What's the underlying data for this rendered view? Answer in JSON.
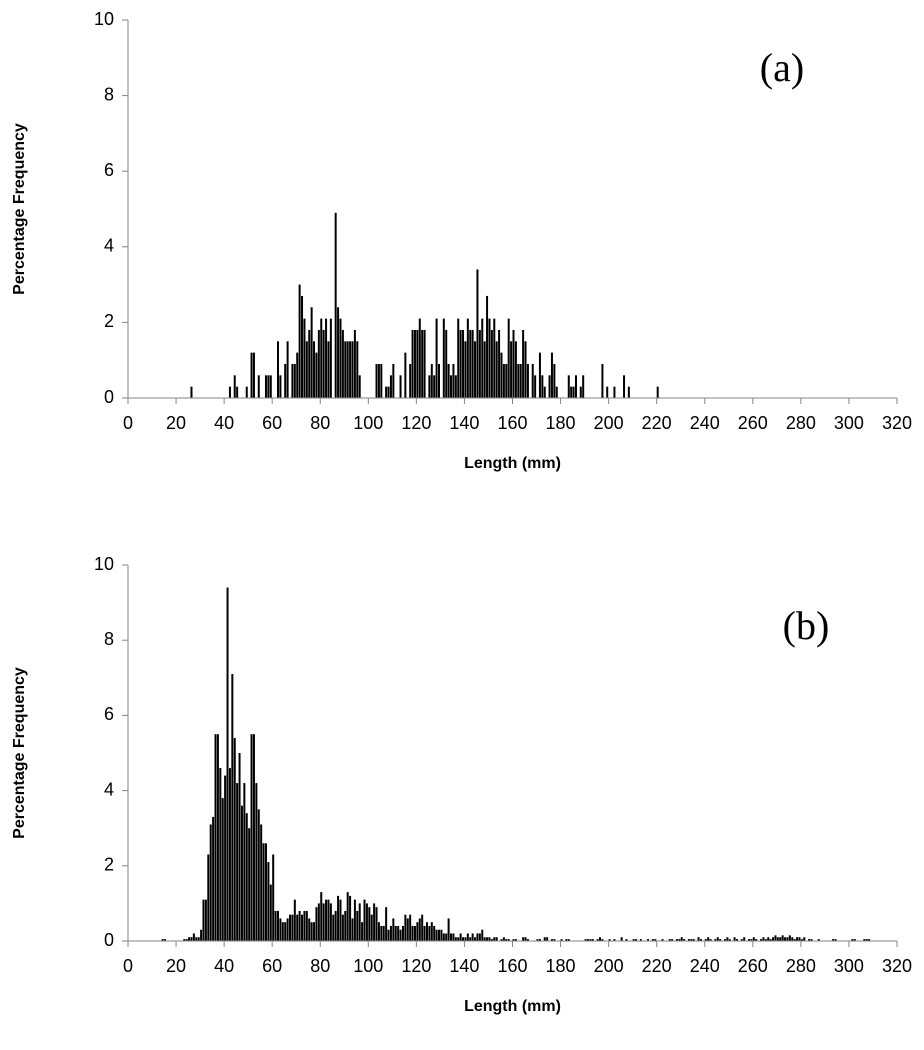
{
  "chart_data": [
    {
      "type": "histogram",
      "annotation": "(a)",
      "xlabel": "Length (mm)",
      "ylabel": "Percentage Frequency",
      "color": "#000000",
      "xlim": [
        0,
        320
      ],
      "xticks": [
        0,
        20,
        40,
        60,
        80,
        100,
        120,
        140,
        160,
        180,
        200,
        220,
        240,
        260,
        280,
        300,
        320
      ],
      "ylim": [
        0,
        10
      ],
      "yticks": [
        0,
        2,
        4,
        6,
        8,
        10
      ],
      "grid": false,
      "bins": [
        25,
        26,
        27,
        28,
        29,
        30,
        31,
        32,
        33,
        34,
        35,
        36,
        37,
        38,
        39,
        40,
        41,
        42,
        43,
        44,
        45,
        46,
        47,
        48,
        49,
        50,
        51,
        52,
        53,
        54,
        55,
        56,
        57,
        58,
        59,
        60,
        61,
        62,
        63,
        64,
        65,
        66,
        67,
        68,
        69,
        70,
        71,
        72,
        73,
        74,
        75,
        76,
        77,
        78,
        79,
        80,
        81,
        82,
        83,
        84,
        85,
        86,
        87,
        88,
        89,
        90,
        91,
        92,
        93,
        94,
        95,
        96,
        97,
        98,
        99,
        100,
        101,
        102,
        103,
        104,
        105,
        106,
        107,
        108,
        109,
        110,
        111,
        112,
        113,
        114,
        115,
        116,
        117,
        118,
        119,
        120,
        121,
        122,
        123,
        124,
        125,
        126,
        127,
        128,
        129,
        130,
        131,
        132,
        133,
        134,
        135,
        136,
        137,
        138,
        139,
        140,
        141,
        142,
        143,
        144,
        145,
        146,
        147,
        148,
        149,
        150,
        151,
        152,
        153,
        154,
        155,
        156,
        157,
        158,
        159,
        160,
        161,
        162,
        163,
        164,
        165,
        166,
        167,
        168,
        169,
        170,
        171,
        172,
        173,
        174,
        175,
        176,
        177,
        178,
        179,
        180,
        181,
        182,
        183,
        184,
        185,
        186,
        187,
        188,
        189,
        190,
        191,
        192,
        193,
        194,
        195,
        196,
        197,
        198,
        199,
        200,
        201,
        202,
        203,
        204,
        205,
        206,
        207,
        208,
        209,
        210,
        211,
        212,
        213,
        214,
        215,
        216,
        217,
        218,
        219,
        220,
        221
      ],
      "values": [
        0,
        0.3,
        0,
        0,
        0,
        0,
        0,
        0,
        0,
        0,
        0,
        0,
        0,
        0,
        0,
        0,
        0,
        0.3,
        0,
        0.6,
        0.3,
        0,
        0,
        0,
        0.3,
        0,
        1.2,
        1.2,
        0,
        0.6,
        0,
        0,
        0.6,
        0.6,
        0.6,
        0,
        0,
        1.5,
        0.6,
        0,
        0.9,
        1.5,
        0,
        0.9,
        0.9,
        1.2,
        3.0,
        2.7,
        2.1,
        1.5,
        1.8,
        2.4,
        1.5,
        1.2,
        1.8,
        2.1,
        1.8,
        2.1,
        1.5,
        2.1,
        0,
        4.9,
        2.4,
        2.1,
        1.8,
        1.5,
        1.5,
        1.5,
        1.5,
        1.8,
        1.5,
        0.6,
        0,
        0,
        0,
        0,
        0,
        0,
        0.9,
        0.9,
        0.9,
        0,
        0.3,
        0.3,
        0.6,
        0.9,
        0,
        0,
        0.6,
        0,
        1.2,
        0,
        0.9,
        1.8,
        1.8,
        1.8,
        2.1,
        1.8,
        1.8,
        0,
        0.6,
        0.9,
        0.6,
        2.1,
        0.9,
        0,
        2.1,
        1.8,
        0.9,
        0.6,
        0.9,
        0.6,
        2.1,
        1.8,
        1.8,
        1.5,
        2.1,
        1.8,
        1.8,
        1.5,
        3.4,
        1.8,
        2.1,
        1.5,
        2.7,
        2.1,
        1.8,
        2.1,
        1.5,
        1.8,
        1.2,
        0.9,
        0.9,
        2.1,
        1.5,
        1.8,
        1.5,
        0.9,
        0.9,
        1.8,
        1.5,
        0.9,
        0,
        0.9,
        0.6,
        0,
        1.2,
        0.6,
        0.3,
        0,
        0.6,
        1.2,
        0.9,
        0.3,
        0,
        0,
        0,
        0,
        0.6,
        0.3,
        0.3,
        0.6,
        0,
        0.3,
        0.6,
        0,
        0,
        0,
        0,
        0,
        0,
        0,
        0.9,
        0,
        0.3,
        0,
        0,
        0.3,
        0,
        0,
        0,
        0.6,
        0,
        0.3,
        0,
        0,
        0,
        0,
        0,
        0,
        0,
        0,
        0,
        0,
        0,
        0.3
      ]
    },
    {
      "type": "histogram",
      "annotation": "(b)",
      "xlabel": "Length (mm)",
      "ylabel": "Percentage Frequency",
      "color": "#000000",
      "xlim": [
        0,
        320
      ],
      "xticks": [
        0,
        20,
        40,
        60,
        80,
        100,
        120,
        140,
        160,
        180,
        200,
        220,
        240,
        260,
        280,
        300,
        320
      ],
      "ylim": [
        0,
        10
      ],
      "yticks": [
        0,
        2,
        4,
        6,
        8,
        10
      ],
      "grid": false,
      "bins": [
        14,
        15,
        16,
        17,
        18,
        19,
        20,
        21,
        22,
        23,
        24,
        25,
        26,
        27,
        28,
        29,
        30,
        31,
        32,
        33,
        34,
        35,
        36,
        37,
        38,
        39,
        40,
        41,
        42,
        43,
        44,
        45,
        46,
        47,
        48,
        49,
        50,
        51,
        52,
        53,
        54,
        55,
        56,
        57,
        58,
        59,
        60,
        61,
        62,
        63,
        64,
        65,
        66,
        67,
        68,
        69,
        70,
        71,
        72,
        73,
        74,
        75,
        76,
        77,
        78,
        79,
        80,
        81,
        82,
        83,
        84,
        85,
        86,
        87,
        88,
        89,
        90,
        91,
        92,
        93,
        94,
        95,
        96,
        97,
        98,
        99,
        100,
        101,
        102,
        103,
        104,
        105,
        106,
        107,
        108,
        109,
        110,
        111,
        112,
        113,
        114,
        115,
        116,
        117,
        118,
        119,
        120,
        121,
        122,
        123,
        124,
        125,
        126,
        127,
        128,
        129,
        130,
        131,
        132,
        133,
        134,
        135,
        136,
        137,
        138,
        139,
        140,
        141,
        142,
        143,
        144,
        145,
        146,
        147,
        148,
        149,
        150,
        151,
        152,
        153,
        154,
        155,
        156,
        157,
        158,
        159,
        160,
        161,
        162,
        163,
        164,
        165,
        166,
        167,
        168,
        169,
        170,
        171,
        172,
        173,
        174,
        175,
        176,
        177,
        178,
        179,
        180,
        181,
        182,
        183,
        184,
        185,
        186,
        187,
        188,
        189,
        190,
        191,
        192,
        193,
        194,
        195,
        196,
        197,
        198,
        199,
        200,
        201,
        202,
        203,
        204,
        205,
        206,
        207,
        208,
        209,
        210,
        211,
        212,
        213,
        214,
        215,
        216,
        217,
        218,
        219,
        220,
        221,
        222,
        223,
        224,
        225,
        226,
        227,
        228,
        229,
        230,
        231,
        232,
        233,
        234,
        235,
        236,
        237,
        238,
        239,
        240,
        241,
        242,
        243,
        244,
        245,
        246,
        247,
        248,
        249,
        250,
        251,
        252,
        253,
        254,
        255,
        256,
        257,
        258,
        259,
        260,
        261,
        262,
        263,
        264,
        265,
        266,
        267,
        268,
        269,
        270,
        271,
        272,
        273,
        274,
        275,
        276,
        277,
        278,
        279,
        280,
        281,
        282,
        283,
        284,
        285,
        286,
        287,
        288,
        289,
        290,
        291,
        292,
        293,
        294,
        295,
        296,
        297,
        298,
        299,
        300,
        301,
        302,
        303,
        304,
        305,
        306,
        307,
        308,
        309
      ],
      "values": [
        0.05,
        0.05,
        0,
        0,
        0,
        0,
        0,
        0,
        0,
        0.05,
        0.05,
        0.1,
        0.1,
        0.2,
        0.1,
        0.1,
        0.3,
        1.1,
        1.1,
        2.3,
        3.1,
        3.3,
        5.5,
        5.5,
        4.6,
        3.8,
        4.4,
        9.4,
        4.6,
        7.1,
        5.4,
        4.2,
        5.0,
        3.6,
        4.2,
        3.4,
        3.0,
        5.5,
        5.5,
        4.2,
        3.5,
        3.1,
        2.6,
        2.6,
        2.1,
        1.5,
        2.3,
        0.8,
        0.8,
        0.6,
        0.5,
        0.5,
        0.6,
        0.7,
        0.7,
        1.1,
        0.7,
        0.8,
        0.7,
        0.8,
        0.8,
        0.6,
        0.5,
        0.5,
        0.9,
        1.0,
        1.3,
        1.0,
        1.1,
        1.1,
        1.0,
        0.7,
        0.8,
        1.2,
        1.1,
        0.7,
        0.8,
        1.3,
        1.2,
        0.6,
        1.1,
        0.8,
        1.0,
        0.5,
        1.1,
        1.0,
        0.9,
        0.7,
        1.0,
        0.9,
        0.5,
        0.4,
        0.4,
        0.9,
        0.3,
        0.4,
        0.6,
        0.4,
        0.4,
        0.3,
        0.4,
        0.7,
        0.6,
        0.7,
        0.4,
        0.4,
        0.5,
        0.6,
        0.7,
        0.4,
        0.5,
        0.4,
        0.5,
        0.4,
        0.3,
        0.3,
        0.3,
        0.2,
        0.2,
        0.6,
        0.2,
        0.2,
        0.1,
        0.1,
        0.2,
        0.1,
        0.1,
        0.2,
        0.1,
        0.2,
        0.1,
        0.2,
        0.2,
        0.3,
        0.1,
        0.1,
        0.1,
        0.05,
        0.1,
        0.1,
        0,
        0.05,
        0.1,
        0.05,
        0.05,
        0,
        0.05,
        0.05,
        0,
        0,
        0.1,
        0.1,
        0.05,
        0,
        0,
        0,
        0.05,
        0.05,
        0,
        0.1,
        0.1,
        0,
        0.05,
        0.05,
        0,
        0,
        0.05,
        0,
        0.05,
        0.05,
        0,
        0,
        0,
        0,
        0,
        0,
        0.05,
        0.05,
        0.05,
        0.05,
        0,
        0.05,
        0.1,
        0.05,
        0,
        0,
        0.05,
        0,
        0.05,
        0,
        0,
        0.1,
        0,
        0.05,
        0,
        0,
        0.05,
        0.05,
        0,
        0.05,
        0,
        0,
        0.05,
        0,
        0.05,
        0.05,
        0,
        0,
        0.05,
        0,
        0,
        0.05,
        0.05,
        0,
        0.05,
        0.05,
        0.1,
        0.05,
        0,
        0.05,
        0.05,
        0.05,
        0,
        0.1,
        0.05,
        0,
        0.05,
        0.1,
        0.05,
        0,
        0.05,
        0.1,
        0.05,
        0,
        0.05,
        0.1,
        0.05,
        0,
        0.1,
        0.05,
        0,
        0.05,
        0.1,
        0,
        0.05,
        0.05,
        0.1,
        0.05,
        0,
        0.05,
        0.1,
        0.05,
        0.1,
        0.05,
        0.1,
        0.15,
        0.1,
        0.1,
        0.15,
        0.1,
        0.1,
        0.15,
        0.1,
        0.05,
        0.1,
        0.1,
        0.05,
        0.1,
        0,
        0.05,
        0.05,
        0,
        0,
        0.05,
        0,
        0,
        0,
        0,
        0,
        0.05,
        0.05,
        0,
        0,
        0,
        0,
        0,
        0,
        0.05,
        0.05,
        0,
        0,
        0,
        0.05,
        0.05,
        0.05
      ]
    }
  ]
}
